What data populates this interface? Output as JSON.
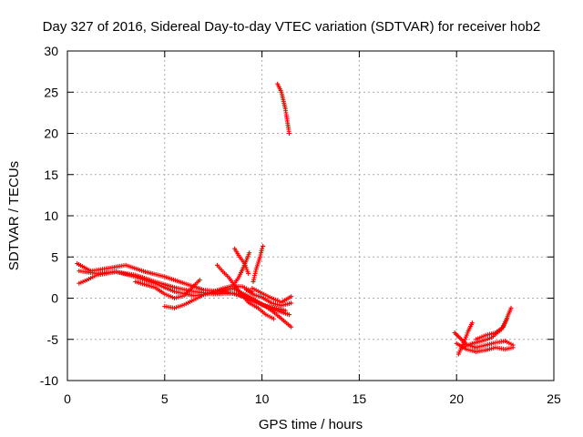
{
  "chart_data": {
    "type": "scatter",
    "title": "Day 327 of 2016, Sidereal Day-to-day VTEC variation (SDTVAR) for receiver hob2",
    "xlabel": "GPS time / hours",
    "ylabel": "SDTVAR / TECUs",
    "xlim": [
      0,
      25
    ],
    "ylim": [
      -10,
      30
    ],
    "x_ticks": [
      0,
      5,
      10,
      15,
      20,
      25
    ],
    "y_ticks": [
      -10,
      -5,
      0,
      5,
      10,
      15,
      20,
      25,
      30
    ],
    "x_tick_labels": [
      "0",
      "5",
      "10",
      "15",
      "20",
      "25"
    ],
    "y_tick_labels": [
      "-10",
      "-5",
      "0",
      "5",
      "10",
      "15",
      "20",
      "25",
      "30"
    ],
    "grid": true,
    "marker": "+",
    "color": "#ff0000",
    "series": [
      {
        "tracks": [
          [
            [
              0.5,
              4.2
            ],
            [
              1.2,
              3.3
            ],
            [
              2.0,
              3.6
            ],
            [
              3.0,
              4.0
            ],
            [
              4.0,
              3.2
            ],
            [
              5.0,
              2.6
            ],
            [
              6.0,
              1.8
            ],
            [
              7.0,
              1.0
            ],
            [
              8.0,
              0.8
            ],
            [
              9.0,
              0.3
            ],
            [
              10.0,
              -0.8
            ],
            [
              11.2,
              -1.5
            ]
          ],
          [
            [
              0.6,
              3.3
            ],
            [
              1.5,
              3.0
            ],
            [
              2.5,
              3.2
            ],
            [
              3.5,
              2.8
            ],
            [
              4.5,
              2.0
            ],
            [
              5.5,
              1.3
            ],
            [
              6.5,
              0.8
            ],
            [
              7.5,
              0.5
            ],
            [
              8.5,
              0.6
            ],
            [
              9.5,
              -0.2
            ],
            [
              10.5,
              -1.3
            ],
            [
              11.4,
              -2.0
            ]
          ],
          [
            [
              0.6,
              1.8
            ],
            [
              1.0,
              2.2
            ],
            [
              1.5,
              2.8
            ],
            [
              2.5,
              3.2
            ],
            [
              3.5,
              2.6
            ],
            [
              4.5,
              1.8
            ],
            [
              5.5,
              0.8
            ],
            [
              6.5,
              0.3
            ],
            [
              7.5,
              0.6
            ],
            [
              8.5,
              1.2
            ],
            [
              9.5,
              0.0
            ],
            [
              10.5,
              -1.5
            ],
            [
              11.5,
              -3.5
            ]
          ],
          [
            [
              5.0,
              -1.0
            ],
            [
              5.5,
              -1.2
            ],
            [
              6.0,
              -0.8
            ],
            [
              6.5,
              -0.2
            ],
            [
              7.0,
              0.4
            ],
            [
              7.5,
              0.8
            ],
            [
              8.0,
              1.2
            ],
            [
              8.5,
              1.5
            ],
            [
              9.0,
              1.4
            ],
            [
              9.5,
              0.8
            ]
          ],
          [
            [
              3.5,
              2.0
            ],
            [
              4.5,
              1.3
            ],
            [
              5.0,
              0.5
            ],
            [
              5.5,
              0.0
            ],
            [
              6.0,
              0.3
            ],
            [
              6.5,
              1.5
            ],
            [
              6.8,
              2.2
            ]
          ],
          [
            [
              7.7,
              4.0
            ],
            [
              8.0,
              3.2
            ],
            [
              8.3,
              2.5
            ],
            [
              8.6,
              1.5
            ],
            [
              8.9,
              0.6
            ],
            [
              9.3,
              -0.5
            ],
            [
              9.8,
              -1.2
            ],
            [
              10.2,
              -2.0
            ],
            [
              10.6,
              -2.5
            ]
          ],
          [
            [
              8.6,
              6.0
            ],
            [
              8.8,
              5.2
            ],
            [
              9.1,
              4.2
            ],
            [
              9.3,
              3.0
            ]
          ],
          [
            [
              8.5,
              1.5
            ],
            [
              8.8,
              2.5
            ],
            [
              9.0,
              3.5
            ],
            [
              9.2,
              4.6
            ],
            [
              9.35,
              5.5
            ]
          ],
          [
            [
              9.55,
              2.0
            ],
            [
              9.7,
              3.5
            ],
            [
              9.9,
              5.0
            ],
            [
              10.0,
              6.0
            ],
            [
              10.05,
              6.3
            ]
          ],
          [
            [
              9.2,
              1.0
            ],
            [
              9.6,
              0.4
            ],
            [
              10.0,
              0.1
            ],
            [
              10.5,
              -0.6
            ],
            [
              11.0,
              -0.9
            ],
            [
              11.5,
              -0.6
            ]
          ],
          [
            [
              9.5,
              1.2
            ],
            [
              10.0,
              0.6
            ],
            [
              10.5,
              0.0
            ],
            [
              11.0,
              -0.5
            ],
            [
              11.5,
              0.2
            ]
          ],
          [
            [
              10.8,
              26.0
            ],
            [
              11.0,
              25.0
            ],
            [
              11.2,
              23.0
            ],
            [
              11.3,
              21.5
            ],
            [
              11.4,
              20.0
            ]
          ],
          [
            [
              19.9,
              -4.2
            ],
            [
              20.5,
              -5.6
            ],
            [
              21.0,
              -6.0
            ],
            [
              21.5,
              -5.7
            ],
            [
              22.0,
              -5.4
            ],
            [
              22.5,
              -5.2
            ],
            [
              22.9,
              -5.7
            ]
          ],
          [
            [
              20.0,
              -5.5
            ],
            [
              20.5,
              -6.2
            ],
            [
              21.0,
              -6.5
            ],
            [
              21.5,
              -6.3
            ],
            [
              22.0,
              -6.0
            ],
            [
              22.5,
              -6.2
            ],
            [
              22.9,
              -6.0
            ]
          ],
          [
            [
              20.1,
              -6.8
            ],
            [
              20.4,
              -5.2
            ],
            [
              20.6,
              -4.0
            ],
            [
              20.8,
              -3.0
            ]
          ],
          [
            [
              21.0,
              -5.0
            ],
            [
              21.5,
              -4.5
            ],
            [
              22.0,
              -4.2
            ],
            [
              22.4,
              -3.5
            ],
            [
              22.8,
              -1.2
            ]
          ],
          [
            [
              20.3,
              -6.0
            ],
            [
              20.8,
              -5.5
            ],
            [
              21.3,
              -5.2
            ],
            [
              21.8,
              -4.8
            ],
            [
              22.3,
              -3.8
            ],
            [
              22.6,
              -2.5
            ]
          ]
        ]
      }
    ]
  }
}
